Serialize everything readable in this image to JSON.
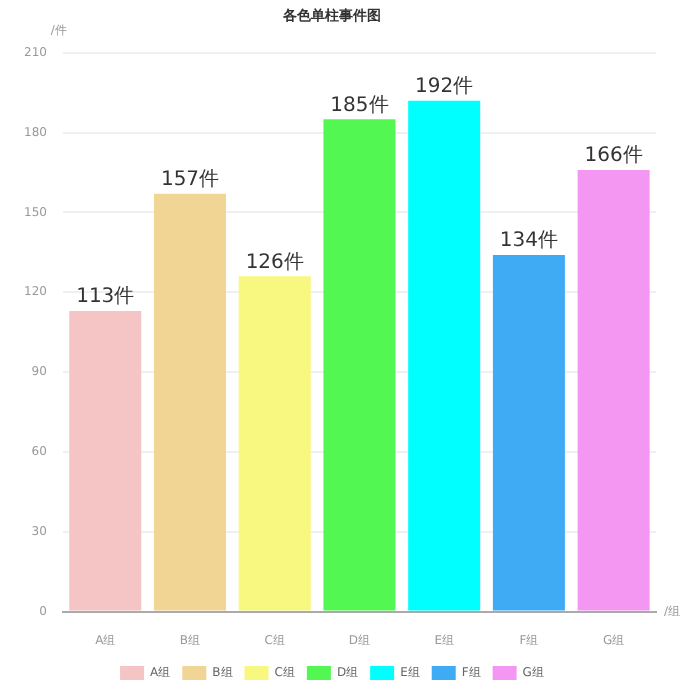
{
  "chart_data": {
    "type": "bar",
    "title": "各色单柱事件图",
    "xlabel": "/组",
    "ylabel": "/件",
    "categories": [
      "A组",
      "B组",
      "C组",
      "D组",
      "E组",
      "F组",
      "G组"
    ],
    "series": [
      {
        "name": "A组",
        "color": "#f5c4c4",
        "values": [
          113,
          null,
          null,
          null,
          null,
          null,
          null
        ],
        "value_labels": [
          "113件",
          null,
          null,
          null,
          null,
          null,
          null
        ]
      },
      {
        "name": "B组",
        "color": "#f0d595",
        "values": [
          null,
          157,
          null,
          null,
          null,
          null,
          null
        ],
        "value_labels": [
          null,
          "157件",
          null,
          null,
          null,
          null,
          null
        ]
      },
      {
        "name": "C组",
        "color": "#f8f77f",
        "values": [
          null,
          null,
          126,
          null,
          null,
          null,
          null
        ],
        "value_labels": [
          null,
          null,
          "126件",
          null,
          null,
          null,
          null
        ]
      },
      {
        "name": "D组",
        "color": "#52f752",
        "values": [
          null,
          null,
          null,
          185,
          null,
          null,
          null
        ],
        "value_labels": [
          null,
          null,
          null,
          "185件",
          null,
          null,
          null
        ]
      },
      {
        "name": "E组",
        "color": "#00ffff",
        "values": [
          null,
          null,
          null,
          null,
          192,
          null,
          null
        ],
        "value_labels": [
          null,
          null,
          null,
          null,
          "192件",
          null,
          null
        ]
      },
      {
        "name": "F组",
        "color": "#3fabf5",
        "values": [
          null,
          null,
          null,
          null,
          null,
          134,
          null
        ],
        "value_labels": [
          null,
          null,
          null,
          null,
          null,
          "134件",
          null
        ]
      },
      {
        "name": "G组",
        "color": "#f397f3",
        "values": [
          null,
          null,
          null,
          null,
          null,
          null,
          166
        ],
        "value_labels": [
          null,
          null,
          null,
          null,
          null,
          null,
          "166件"
        ]
      }
    ],
    "ylim": [
      0,
      210
    ],
    "yticks": [
      0,
      30,
      60,
      90,
      120,
      150,
      180,
      210
    ],
    "grid": "y",
    "legend": "bottom"
  }
}
